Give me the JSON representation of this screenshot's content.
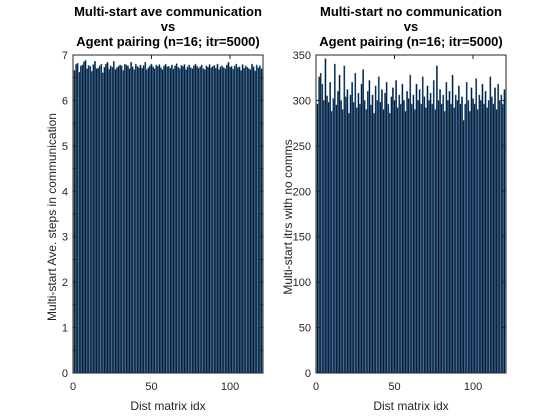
{
  "chart_data": [
    {
      "type": "bar",
      "title": [
        "Multi-start ave communication",
        "vs",
        "Agent pairing (n=16; itr=5000)"
      ],
      "xlabel": "Dist matrix idx",
      "ylabel": "Multi-start Ave. steps in communication",
      "xlim": [
        0,
        121
      ],
      "ylim": [
        0,
        7
      ],
      "xticks": [
        0,
        50,
        100
      ],
      "yticks": [
        0,
        0.5,
        1,
        1.5,
        2,
        2.5,
        3,
        3.5,
        4,
        4.5,
        5,
        5.5,
        6,
        6.5,
        7
      ],
      "ytick_labels": [
        "0",
        "",
        "1",
        "",
        "2",
        "",
        "3",
        "",
        "4",
        "",
        "5",
        "",
        "6",
        "",
        "7"
      ],
      "bar_color": "#000000",
      "edge_color": "#3a78b5",
      "values": [
        6.66,
        6.8,
        6.82,
        6.62,
        6.76,
        6.78,
        6.85,
        6.88,
        6.7,
        6.77,
        6.75,
        6.64,
        6.79,
        6.86,
        6.7,
        6.71,
        6.76,
        6.8,
        6.61,
        6.73,
        6.8,
        6.84,
        6.69,
        6.76,
        6.73,
        6.86,
        6.68,
        6.72,
        6.75,
        6.78,
        6.76,
        6.66,
        6.8,
        6.78,
        6.76,
        6.7,
        6.84,
        6.74,
        6.68,
        6.8,
        6.75,
        6.72,
        6.78,
        6.71,
        6.77,
        6.84,
        6.68,
        6.72,
        6.76,
        6.8,
        6.74,
        6.7,
        6.78,
        6.75,
        6.79,
        6.72,
        6.68,
        6.76,
        6.8,
        6.74,
        6.75,
        6.71,
        6.78,
        6.69,
        6.76,
        6.81,
        6.73,
        6.7,
        6.77,
        6.75,
        6.79,
        6.68,
        6.74,
        6.78,
        6.72,
        6.7,
        6.76,
        6.8,
        6.75,
        6.71,
        6.74,
        6.78,
        6.7,
        6.68,
        6.76,
        6.73,
        6.79,
        6.72,
        6.75,
        6.77,
        6.71,
        6.8,
        6.68,
        6.74,
        6.76,
        6.72,
        6.7,
        6.78,
        6.84,
        6.73,
        6.75,
        6.69,
        6.76,
        6.8,
        6.72,
        6.74,
        6.66,
        6.79,
        6.71,
        6.76,
        6.73,
        6.7,
        6.68,
        6.8,
        6.74,
        6.65,
        6.78,
        6.72,
        6.76,
        6.7
      ]
    },
    {
      "type": "bar",
      "title": [
        "Multi-start no communication",
        "vs",
        "Agent pairing (n=16; itr=5000)"
      ],
      "xlabel": "Dist matrix idx",
      "ylabel": "Multi-start itrs with no comms",
      "xlim": [
        0,
        121
      ],
      "ylim": [
        0,
        350
      ],
      "xticks": [
        0,
        50,
        100
      ],
      "yticks": [
        0,
        50,
        100,
        150,
        200,
        250,
        300,
        350
      ],
      "ytick_labels": [
        "0",
        "50",
        "100",
        "150",
        "200",
        "250",
        "300",
        "350"
      ],
      "bar_color": "#000000",
      "edge_color": "#3a78b5",
      "values": [
        296,
        326,
        330,
        318,
        300,
        346,
        305,
        298,
        320,
        288,
        302,
        340,
        295,
        310,
        328,
        300,
        290,
        338,
        304,
        312,
        286,
        306,
        320,
        298,
        330,
        292,
        308,
        296,
        318,
        334,
        300,
        290,
        310,
        322,
        295,
        306,
        286,
        316,
        300,
        326,
        298,
        312,
        290,
        308,
        320,
        296,
        286,
        304,
        314,
        300,
        322,
        292,
        306,
        296,
        318,
        300,
        288,
        310,
        302,
        328,
        296,
        306,
        290,
        318,
        300,
        312,
        296,
        326,
        304,
        292,
        316,
        300,
        308,
        296,
        322,
        290,
        338,
        300,
        312,
        296,
        306,
        288,
        320,
        300,
        310,
        296,
        328,
        292,
        306,
        300,
        316,
        296,
        304,
        278,
        296,
        320,
        300,
        288,
        314,
        302,
        296,
        324,
        290,
        306,
        300,
        318,
        296,
        310,
        292,
        300,
        326,
        304,
        296,
        314,
        290,
        318,
        300,
        306,
        296,
        312
      ]
    }
  ]
}
